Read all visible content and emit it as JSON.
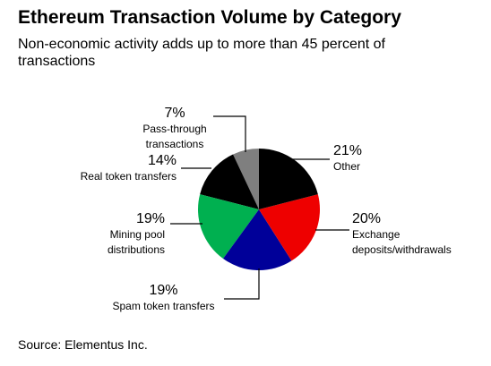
{
  "chart_data": {
    "type": "pie",
    "title": "Ethereum Transaction Volume by Category",
    "subtitle": "Non-economic activity adds up to more than 45 percent of transactions",
    "categories": [
      "Other",
      "Exchange\ndeposits/withdrawals",
      "Spam token transfers",
      "Mining pool\ndistributions",
      "Real token transfers",
      "Pass-through\ntransactions"
    ],
    "values": [
      21,
      20,
      19,
      19,
      14,
      7
    ],
    "value_labels": [
      "21%",
      "20%",
      "19%",
      "19%",
      "14%",
      "7%"
    ],
    "colors": [
      "#000000",
      "#ee0000",
      "#000099",
      "#00b050",
      "#000000",
      "#7f7f7f"
    ],
    "source": "Source: Elementus Inc."
  }
}
